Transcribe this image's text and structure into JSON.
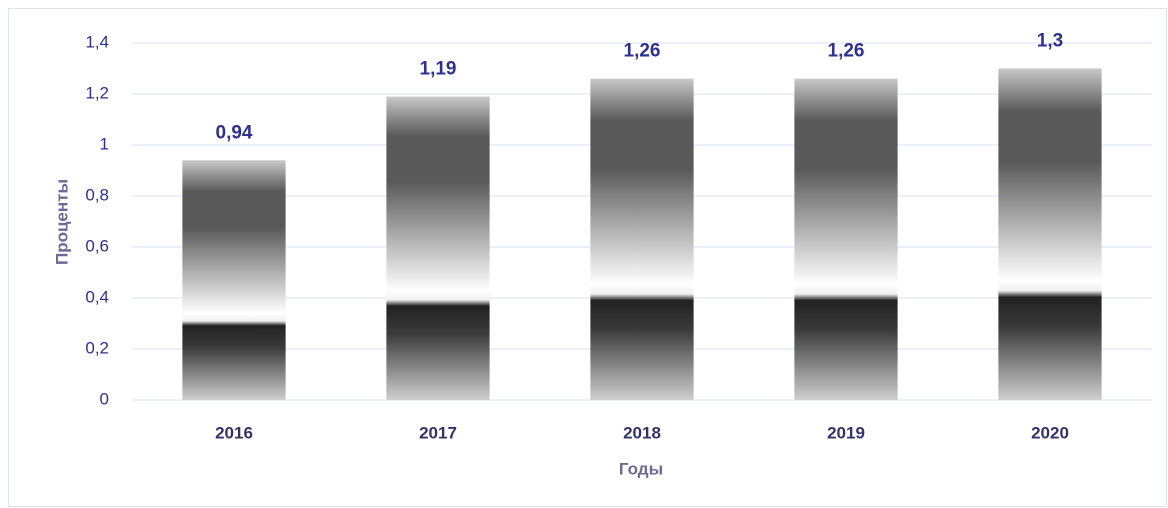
{
  "chart_data": {
    "type": "bar",
    "x_label": "Годы",
    "y_label": "Проценты",
    "categories": [
      "2016",
      "2017",
      "2018",
      "2019",
      "2020"
    ],
    "values": [
      0.94,
      1.19,
      1.26,
      1.26,
      1.3
    ],
    "value_labels": [
      "0,94",
      "1,19",
      "1,26",
      "1,26",
      "1,3"
    ],
    "color": "#595959",
    "ylim": [
      0,
      1.4
    ],
    "yticks": [
      0,
      {
        "value": 0.2,
        "label": "0,2"
      },
      {
        "value": 0.4,
        "label": "0,4"
      },
      {
        "value": 0.6,
        "label": "0,6"
      },
      {
        "value": 0.8,
        "label": "0,8"
      },
      1,
      {
        "value": 1.2,
        "label": "1,2"
      },
      {
        "value": 1.4,
        "label": "1,4"
      }
    ],
    "grid": true
  }
}
